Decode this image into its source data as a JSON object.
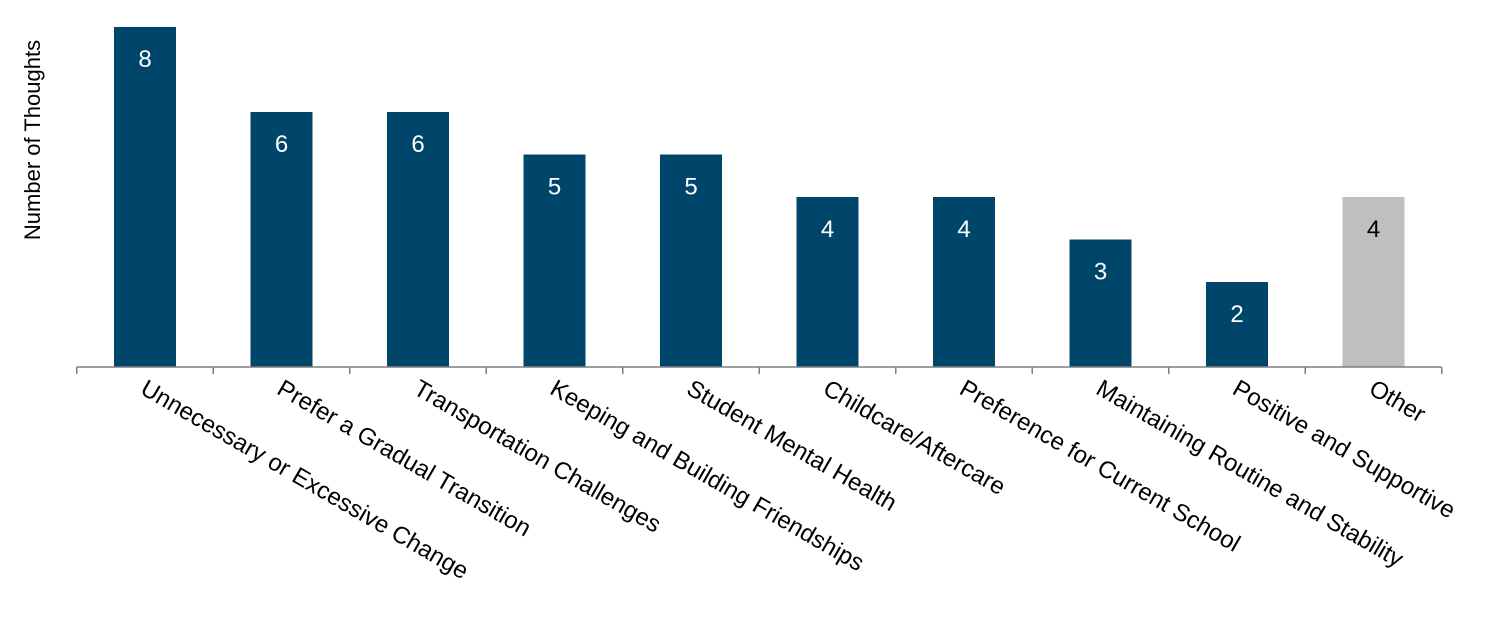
{
  "chart_data": {
    "type": "bar",
    "title": "",
    "xlabel": "",
    "ylabel": "Number of Thoughts",
    "ylim": [
      0,
      8
    ],
    "grid": false,
    "legend": "none",
    "categories": [
      "Unnecessary or Excessive Change",
      "Prefer a Gradual Transition",
      "Transportation Challenges",
      "Keeping and Building Friendships",
      "Student Mental Health",
      "Childcare/Aftercare",
      "Preference for Current School",
      "Maintaining Routine and Stability",
      "Positive and Supportive",
      "Other"
    ],
    "values": [
      8,
      6,
      6,
      5,
      5,
      4,
      4,
      3,
      2,
      4
    ],
    "value_labels": [
      "8",
      "6",
      "6",
      "5",
      "5",
      "4",
      "4",
      "3",
      "2",
      "4"
    ],
    "colors": {
      "primary_bar": "#00466B",
      "other_bar": "#BFBFBF",
      "label_on_dark": "#FFFFFF",
      "label_on_light": "#000000",
      "axis": "#7F7F7F"
    }
  }
}
